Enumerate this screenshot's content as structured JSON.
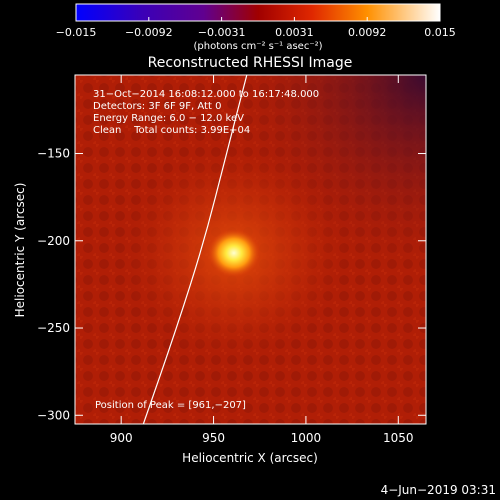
{
  "colorbar": {
    "tick_labels": [
      "−0.015",
      "−0.0092",
      "−0.0031",
      "0.0031",
      "0.0092",
      "0.015"
    ],
    "unit_label": "(photons cm⁻² s⁻¹ asec⁻²)",
    "range": [
      -0.015,
      0.015
    ]
  },
  "chart_data": {
    "type": "heatmap",
    "title": "Reconstructed RHESSI Image",
    "xlabel": "Heliocentric X (arcsec)",
    "ylabel": "Heliocentric Y (arcsec)",
    "xlim": [
      875,
      1065
    ],
    "ylim": [
      -305,
      -105
    ],
    "x_ticks": [
      900,
      950,
      1000,
      1050
    ],
    "y_ticks": [
      -150,
      -200,
      -250,
      -300
    ],
    "x_tick_labels": [
      "900",
      "950",
      "1000",
      "1050"
    ],
    "y_tick_labels": [
      "−150",
      "−200",
      "−250",
      "−300"
    ],
    "annotations": [
      "31−Oct−2014 16:08:12.000 to 16:17:48.000",
      "Detectors: 3F 6F 9F, Att 0",
      "Energy Range: 6.0 − 12.0 keV",
      "Clean    Total counts: 3.99E+04"
    ],
    "peak_label": "Position of Peak = [961,−207]",
    "peak": {
      "x": 961,
      "y": -207
    },
    "limb": [
      [
        912,
        -305
      ],
      [
        930,
        -250
      ],
      [
        945,
        -200
      ],
      [
        957,
        -150
      ],
      [
        968,
        -105
      ]
    ]
  },
  "footer": {
    "date": "4−Jun−2019 03:31"
  }
}
